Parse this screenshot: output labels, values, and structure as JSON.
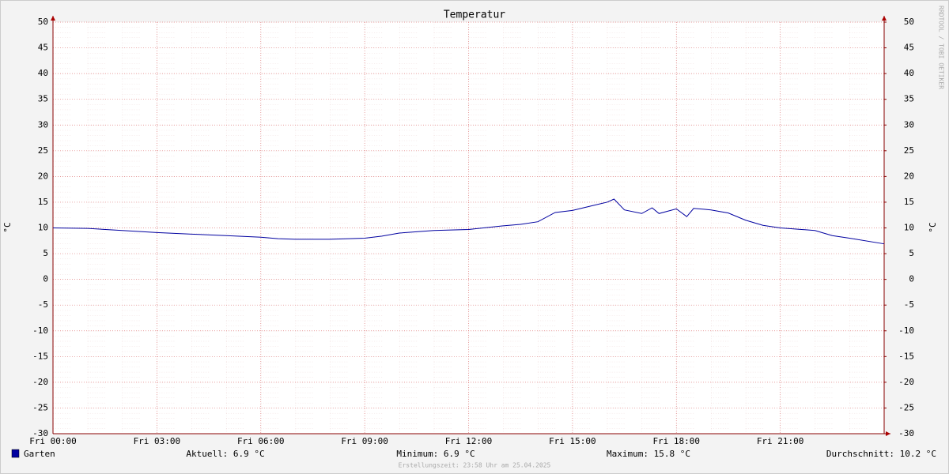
{
  "chart_data": {
    "type": "line",
    "title": "Temperatur",
    "ylabel": "°C",
    "y2label": "°C",
    "watermark": "RRDTOOL / TOBI OETIKER",
    "x": [
      0,
      1,
      2,
      3,
      4,
      5,
      6,
      6.5,
      7,
      8,
      9,
      9.5,
      10,
      11,
      12,
      13,
      13.5,
      14,
      14.5,
      15,
      15.5,
      16,
      16.2,
      16.5,
      17,
      17.3,
      17.5,
      18,
      18.3,
      18.5,
      19,
      19.5,
      20,
      20.5,
      21,
      22,
      22.5,
      23,
      24
    ],
    "series": [
      {
        "name": "Garten",
        "color": "#0000a0",
        "values": [
          10.0,
          9.9,
          9.5,
          9.1,
          8.8,
          8.5,
          8.2,
          7.9,
          7.8,
          7.8,
          8.0,
          8.4,
          9.0,
          9.5,
          9.7,
          10.4,
          10.7,
          11.2,
          13.0,
          13.4,
          14.2,
          15.0,
          15.6,
          13.5,
          12.8,
          13.9,
          12.8,
          13.7,
          12.2,
          13.8,
          13.5,
          12.9,
          11.5,
          10.5,
          10.0,
          9.5,
          8.5,
          8.0,
          6.9
        ]
      }
    ],
    "stats": [
      "Aktuell: 6.9 °C",
      "Minimum: 6.9 °C",
      "Maximum: 15.8 °C",
      "Durchschnitt: 10.2 °C"
    ],
    "footer": "Erstellungszeit: 23:58 Uhr am 25.04.2025",
    "xlim": [
      0,
      24
    ],
    "xticks": [
      {
        "value": 0,
        "label": "Fri 00:00"
      },
      {
        "value": 3,
        "label": "Fri 03:00"
      },
      {
        "value": 6,
        "label": "Fri 06:00"
      },
      {
        "value": 9,
        "label": "Fri 09:00"
      },
      {
        "value": 12,
        "label": "Fri 12:00"
      },
      {
        "value": 15,
        "label": "Fri 15:00"
      },
      {
        "value": 18,
        "label": "Fri 18:00"
      },
      {
        "value": 21,
        "label": "Fri 21:00"
      }
    ],
    "ylim": [
      -30,
      50
    ],
    "yticks": [
      -30,
      -25,
      -20,
      -15,
      -10,
      -5,
      0,
      5,
      10,
      15,
      20,
      25,
      30,
      35,
      40,
      45,
      50
    ],
    "y2lim": [
      -30,
      50
    ],
    "y2ticks": [
      -30,
      -25,
      -20,
      -15,
      -10,
      -5,
      0,
      5,
      10,
      15,
      20,
      25,
      30,
      35,
      40,
      45,
      50
    ],
    "grid": true
  }
}
